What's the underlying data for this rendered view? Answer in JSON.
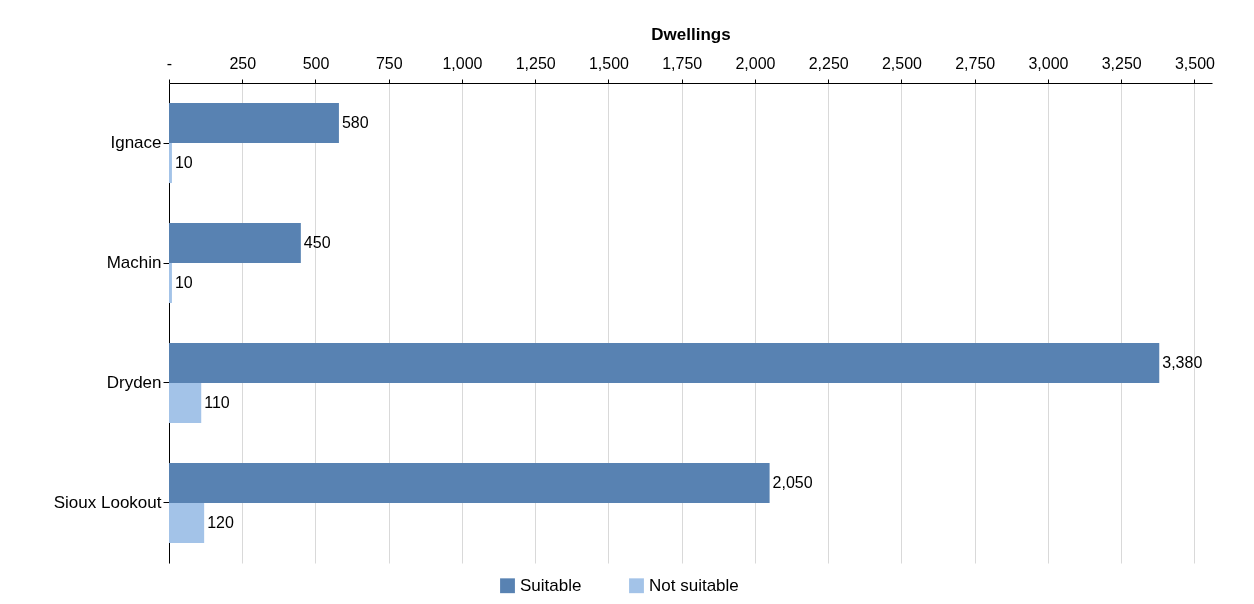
{
  "chart_data": {
    "type": "bar",
    "orientation": "horizontal",
    "xlabel": "Dwellings",
    "categories": [
      "Ignace",
      "Machin",
      "Dryden",
      "Sioux Lookout"
    ],
    "series": [
      {
        "name": "Suitable",
        "color": "#5882b2",
        "values": [
          580,
          450,
          3380,
          2050
        ],
        "value_labels": [
          "580",
          "450",
          "3,380",
          "2,050"
        ]
      },
      {
        "name": "Not suitable",
        "color": "#a3c3e8",
        "values": [
          10,
          10,
          110,
          120
        ],
        "value_labels": [
          "10",
          "10",
          "110",
          "120"
        ]
      }
    ],
    "xlim": [
      0,
      3560
    ],
    "xticks": [
      {
        "value": 0,
        "label": "-"
      },
      250,
      500,
      750,
      {
        "value": 1000,
        "label": "1,000"
      },
      {
        "value": 1250,
        "label": "1,250"
      },
      {
        "value": 1500,
        "label": "1,500"
      },
      {
        "value": 1750,
        "label": "1,750"
      },
      {
        "value": 2000,
        "label": "2,000"
      },
      {
        "value": 2250,
        "label": "2,250"
      },
      {
        "value": 2500,
        "label": "2,500"
      },
      {
        "value": 2750,
        "label": "2,750"
      },
      {
        "value": 3000,
        "label": "3,000"
      },
      {
        "value": 3250,
        "label": "3,250"
      },
      {
        "value": 3500,
        "label": "3,500"
      }
    ],
    "grid": "x",
    "legend": "bottom"
  }
}
